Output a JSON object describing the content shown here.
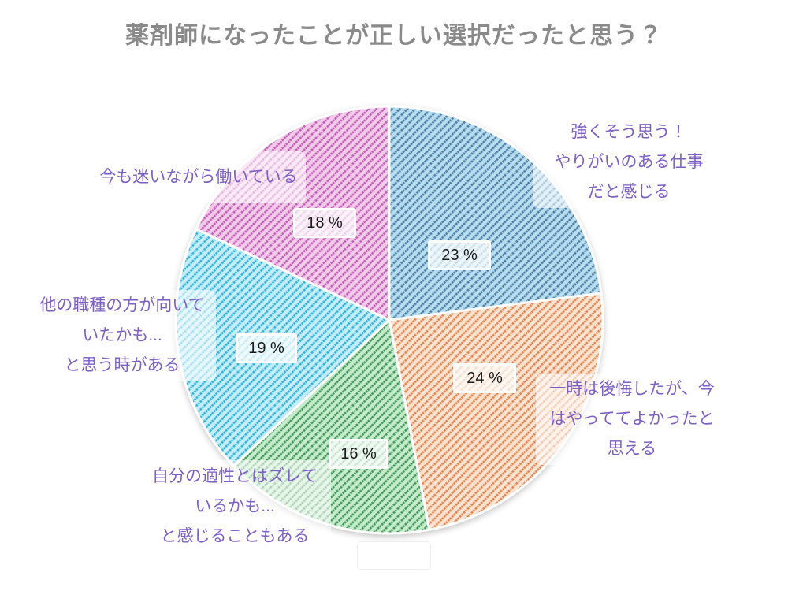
{
  "title": "薬剤師になったことが正しい選択だったと思う？",
  "chart_data": {
    "type": "pie",
    "title": "薬剤師になったことが正しい選択だったと思う？",
    "unit": "%",
    "start_angle_deg": -90,
    "direction": "clockwise",
    "total": 100,
    "pattern": "diagonal-hatch",
    "slices": [
      {
        "id": "strongly-agree",
        "label": "強くそう思う！やりがいのある仕事だと感じる",
        "value": 23,
        "value_label": "23 %",
        "color_bg": "#b7ddef",
        "color_stripe": "#4b7da6"
      },
      {
        "id": "regretted-but-glad",
        "label": "一時は後悔したが、今はやっててよかったと思える",
        "value": 24,
        "value_label": "24 %",
        "color_bg": "#fae3d1",
        "color_stripe": "#e2834e"
      },
      {
        "id": "aptitude-mismatch",
        "label": "自分の適性とはズレているかも...と感じることもある",
        "value": 16,
        "value_label": "16 %",
        "color_bg": "#c4ecca",
        "color_stripe": "#43945a"
      },
      {
        "id": "other-job-better",
        "label": "他の職種の方が向いていたかも...と思う時がある",
        "value": 19,
        "value_label": "19 %",
        "color_bg": "#c3edf8",
        "color_stripe": "#33b1d8"
      },
      {
        "id": "still-wondering",
        "label": "今も迷いながら働いている",
        "value": 18,
        "value_label": "18 %",
        "color_bg": "#f1cce9",
        "color_stripe": "#c35ab7"
      }
    ]
  },
  "annotations": {
    "strongly": {
      "lines": [
        "強くそう思う！",
        "やりがいのある仕事",
        "だと感じる"
      ]
    },
    "regret": {
      "lines": [
        "一時は後悔したが、今",
        "はやっててよかったと",
        "思える"
      ]
    },
    "mismatch": {
      "lines": [
        "自分の適性とはズレて",
        "いるかも...",
        "と感じることもある"
      ]
    },
    "other": {
      "lines": [
        "他の職種の方が向いて",
        "いたかも...",
        "と思う時がある"
      ]
    },
    "wondering": {
      "lines": [
        "今も迷いながら働いている"
      ]
    }
  },
  "colors": {
    "title_text": "#8a8a8a",
    "label_text": "#7d5fc5",
    "percent_text": "#1a1a1a",
    "slice_border": "#ffffff",
    "background": "#ffffff"
  }
}
